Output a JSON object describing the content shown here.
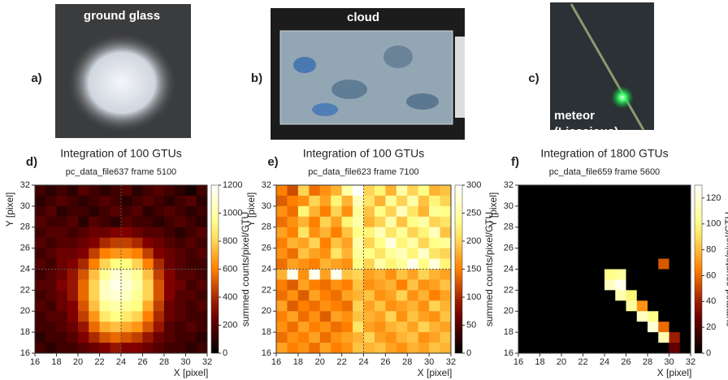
{
  "photos": [
    {
      "panel_label": "a)",
      "caption_lines": [
        "ground glass"
      ]
    },
    {
      "panel_label": "b)",
      "caption_lines": [
        "cloud"
      ]
    },
    {
      "panel_label": "c)",
      "caption_lines": [
        "meteor",
        "(Lissajous)"
      ]
    }
  ],
  "chart_data": [
    {
      "type": "heatmap",
      "panel_label": "d)",
      "title": "Integration of 100 GTUs",
      "subtitle": "pc_data_file637 frame 5100",
      "xlabel": "X [pixel]",
      "ylabel": "Y [pixel]",
      "colorbar_label": "summed counts/pixel/GTU",
      "colormap": "hot",
      "crosshair": true,
      "xlim": [
        16,
        32
      ],
      "ylim": [
        16,
        32
      ],
      "xticks": [
        16,
        18,
        20,
        22,
        24,
        26,
        28,
        30,
        32
      ],
      "yticks": [
        16,
        18,
        20,
        22,
        24,
        26,
        28,
        30,
        32
      ],
      "zlim": [
        0,
        1200
      ],
      "zticks": [
        0,
        200,
        400,
        600,
        800,
        1000,
        1200
      ],
      "z": [
        [
          150,
          100,
          150,
          100,
          200,
          150,
          100,
          150,
          200,
          100,
          150,
          200,
          150,
          100,
          50,
          150
        ],
        [
          100,
          150,
          200,
          150,
          100,
          150,
          200,
          150,
          100,
          150,
          200,
          150,
          100,
          150,
          200,
          100
        ],
        [
          150,
          200,
          100,
          150,
          150,
          100,
          150,
          200,
          150,
          200,
          100,
          150,
          200,
          150,
          100,
          150
        ],
        [
          200,
          150,
          150,
          200,
          100,
          200,
          150,
          100,
          200,
          150,
          150,
          100,
          150,
          200,
          150,
          100
        ],
        [
          150,
          200,
          200,
          150,
          200,
          250,
          250,
          300,
          300,
          250,
          200,
          200,
          150,
          100,
          150,
          200
        ],
        [
          200,
          150,
          200,
          200,
          250,
          300,
          400,
          450,
          450,
          400,
          300,
          250,
          200,
          150,
          200,
          150
        ],
        [
          150,
          200,
          250,
          250,
          300,
          450,
          600,
          650,
          650,
          600,
          450,
          300,
          250,
          200,
          150,
          200
        ],
        [
          200,
          150,
          250,
          300,
          400,
          600,
          800,
          900,
          900,
          800,
          600,
          400,
          250,
          200,
          150,
          150
        ],
        [
          150,
          200,
          250,
          350,
          500,
          750,
          950,
          1100,
          1050,
          950,
          750,
          450,
          300,
          200,
          200,
          150
        ],
        [
          200,
          200,
          300,
          350,
          550,
          800,
          1050,
          1150,
          1100,
          1000,
          800,
          500,
          300,
          250,
          150,
          200
        ],
        [
          150,
          200,
          250,
          350,
          550,
          800,
          1050,
          1100,
          1050,
          950,
          800,
          500,
          300,
          200,
          200,
          150
        ],
        [
          200,
          150,
          250,
          300,
          500,
          750,
          950,
          1000,
          950,
          900,
          700,
          450,
          250,
          200,
          150,
          200
        ],
        [
          150,
          200,
          200,
          300,
          450,
          650,
          850,
          900,
          850,
          800,
          600,
          400,
          250,
          200,
          150,
          150
        ],
        [
          150,
          150,
          200,
          250,
          350,
          550,
          700,
          750,
          700,
          650,
          500,
          350,
          200,
          150,
          200,
          150
        ],
        [
          100,
          150,
          150,
          200,
          300,
          400,
          500,
          550,
          500,
          450,
          350,
          250,
          200,
          150,
          150,
          100
        ],
        [
          150,
          100,
          150,
          150,
          200,
          250,
          300,
          350,
          300,
          300,
          250,
          200,
          150,
          150,
          100,
          150
        ]
      ]
    },
    {
      "type": "heatmap",
      "panel_label": "e)",
      "title": "Integration of 100 GTUs",
      "subtitle": "pc_data_file623 frame 7100",
      "xlabel": "X [pixel]",
      "ylabel": "Y [pixel]",
      "colorbar_label": "summed counts/pixel/GTU",
      "colormap": "hot",
      "crosshair": true,
      "xlim": [
        16,
        32
      ],
      "ylim": [
        16,
        32
      ],
      "xticks": [
        16,
        18,
        20,
        22,
        24,
        26,
        28,
        30,
        32
      ],
      "yticks": [
        16,
        18,
        20,
        22,
        24,
        26,
        28,
        30,
        32
      ],
      "zlim": [
        0,
        300
      ],
      "zticks": [
        0,
        50,
        100,
        150,
        200,
        250,
        300
      ],
      "z": [
        [
          150,
          120,
          200,
          140,
          160,
          180,
          250,
          300,
          200,
          220,
          180,
          250,
          200,
          230,
          180,
          190
        ],
        [
          130,
          150,
          160,
          200,
          170,
          220,
          180,
          260,
          210,
          180,
          240,
          200,
          250,
          190,
          220,
          200
        ],
        [
          160,
          140,
          220,
          180,
          150,
          200,
          160,
          240,
          190,
          230,
          200,
          260,
          210,
          180,
          240,
          230
        ],
        [
          140,
          160,
          180,
          150,
          200,
          170,
          220,
          250,
          180,
          200,
          250,
          190,
          230,
          250,
          200,
          210
        ],
        [
          170,
          150,
          210,
          160,
          180,
          150,
          190,
          230,
          220,
          260,
          210,
          240,
          200,
          220,
          260,
          190
        ],
        [
          150,
          180,
          170,
          200,
          150,
          190,
          170,
          250,
          200,
          230,
          280,
          220,
          250,
          200,
          230,
          240
        ],
        [
          160,
          140,
          190,
          170,
          160,
          210,
          180,
          240,
          230,
          210,
          240,
          260,
          220,
          270,
          210,
          200
        ],
        [
          140,
          170,
          160,
          150,
          180,
          170,
          160,
          230,
          200,
          250,
          220,
          240,
          290,
          230,
          280,
          220
        ],
        [
          180,
          290,
          160,
          290,
          170,
          290,
          190,
          200,
          170,
          180,
          160,
          190,
          170,
          200,
          180,
          170
        ],
        [
          150,
          130,
          170,
          150,
          140,
          160,
          150,
          190,
          160,
          170,
          180,
          150,
          190,
          160,
          170,
          190
        ],
        [
          140,
          160,
          130,
          170,
          150,
          140,
          170,
          180,
          190,
          160,
          170,
          200,
          160,
          180,
          150,
          170
        ],
        [
          170,
          130,
          150,
          140,
          160,
          150,
          140,
          200,
          170,
          190,
          160,
          170,
          180,
          160,
          200,
          180
        ],
        [
          150,
          170,
          140,
          160,
          130,
          170,
          160,
          190,
          180,
          170,
          200,
          160,
          190,
          170,
          160,
          190
        ],
        [
          160,
          140,
          170,
          150,
          160,
          140,
          150,
          210,
          170,
          160,
          180,
          190,
          170,
          200,
          180,
          170
        ],
        [
          140,
          160,
          150,
          170,
          140,
          160,
          170,
          180,
          200,
          170,
          160,
          180,
          190,
          160,
          170,
          190
        ],
        [
          170,
          150,
          160,
          140,
          170,
          150,
          160,
          190,
          180,
          190,
          170,
          160,
          180,
          170,
          190,
          180
        ]
      ]
    },
    {
      "type": "heatmap",
      "panel_label": "f)",
      "title": "Integration of 1800 GTUs",
      "subtitle": "pc_data_file659 frame 5600",
      "xlabel": "X [pixel]",
      "ylabel": "Y [pixel]",
      "colorbar_label": "summed counts/pixel/GTU",
      "colormap": "hot",
      "crosshair": false,
      "xlim": [
        16,
        32
      ],
      "ylim": [
        16,
        32
      ],
      "xticks": [
        16,
        18,
        20,
        22,
        24,
        26,
        28,
        30,
        32
      ],
      "yticks": [
        16,
        18,
        20,
        22,
        24,
        26,
        28,
        30,
        32
      ],
      "zlim": [
        0,
        130
      ],
      "zticks": [
        0,
        20,
        40,
        60,
        80,
        100,
        120
      ],
      "z": [
        [
          0,
          0,
          0,
          0,
          0,
          0,
          0,
          0,
          0,
          0,
          0,
          0,
          0,
          0,
          0,
          0
        ],
        [
          0,
          0,
          0,
          0,
          0,
          0,
          0,
          0,
          0,
          0,
          0,
          0,
          0,
          0,
          0,
          0
        ],
        [
          0,
          0,
          0,
          0,
          0,
          0,
          0,
          0,
          0,
          0,
          0,
          0,
          0,
          0,
          0,
          0
        ],
        [
          0,
          0,
          0,
          0,
          0,
          0,
          0,
          0,
          0,
          0,
          0,
          0,
          0,
          0,
          0,
          0
        ],
        [
          0,
          0,
          0,
          0,
          0,
          0,
          0,
          0,
          0,
          0,
          0,
          0,
          0,
          0,
          0,
          0
        ],
        [
          0,
          0,
          0,
          0,
          0,
          0,
          0,
          0,
          0,
          0,
          0,
          0,
          0,
          0,
          0,
          0
        ],
        [
          0,
          0,
          0,
          0,
          0,
          0,
          0,
          0,
          0,
          0,
          0,
          0,
          0,
          0,
          0,
          0
        ],
        [
          0,
          0,
          0,
          0,
          0,
          0,
          0,
          0,
          0,
          0,
          0,
          0,
          0,
          55,
          0,
          0
        ],
        [
          0,
          0,
          0,
          0,
          0,
          0,
          0,
          0,
          100,
          105,
          0,
          0,
          0,
          0,
          0,
          0
        ],
        [
          0,
          0,
          0,
          0,
          0,
          0,
          0,
          0,
          115,
          125,
          0,
          0,
          0,
          0,
          0,
          0
        ],
        [
          0,
          0,
          0,
          0,
          0,
          0,
          0,
          0,
          0,
          110,
          95,
          0,
          0,
          0,
          0,
          0
        ],
        [
          0,
          0,
          0,
          0,
          0,
          0,
          0,
          0,
          0,
          0,
          105,
          70,
          0,
          0,
          0,
          0
        ],
        [
          0,
          0,
          0,
          0,
          0,
          0,
          0,
          0,
          0,
          0,
          0,
          115,
          100,
          0,
          0,
          0
        ],
        [
          0,
          0,
          0,
          0,
          0,
          0,
          0,
          0,
          0,
          0,
          0,
          0,
          120,
          60,
          0,
          0
        ],
        [
          0,
          0,
          0,
          0,
          0,
          0,
          0,
          0,
          0,
          0,
          0,
          0,
          0,
          110,
          40,
          0
        ],
        [
          0,
          0,
          0,
          0,
          0,
          0,
          0,
          0,
          0,
          0,
          0,
          0,
          0,
          0,
          25,
          0
        ]
      ]
    }
  ]
}
